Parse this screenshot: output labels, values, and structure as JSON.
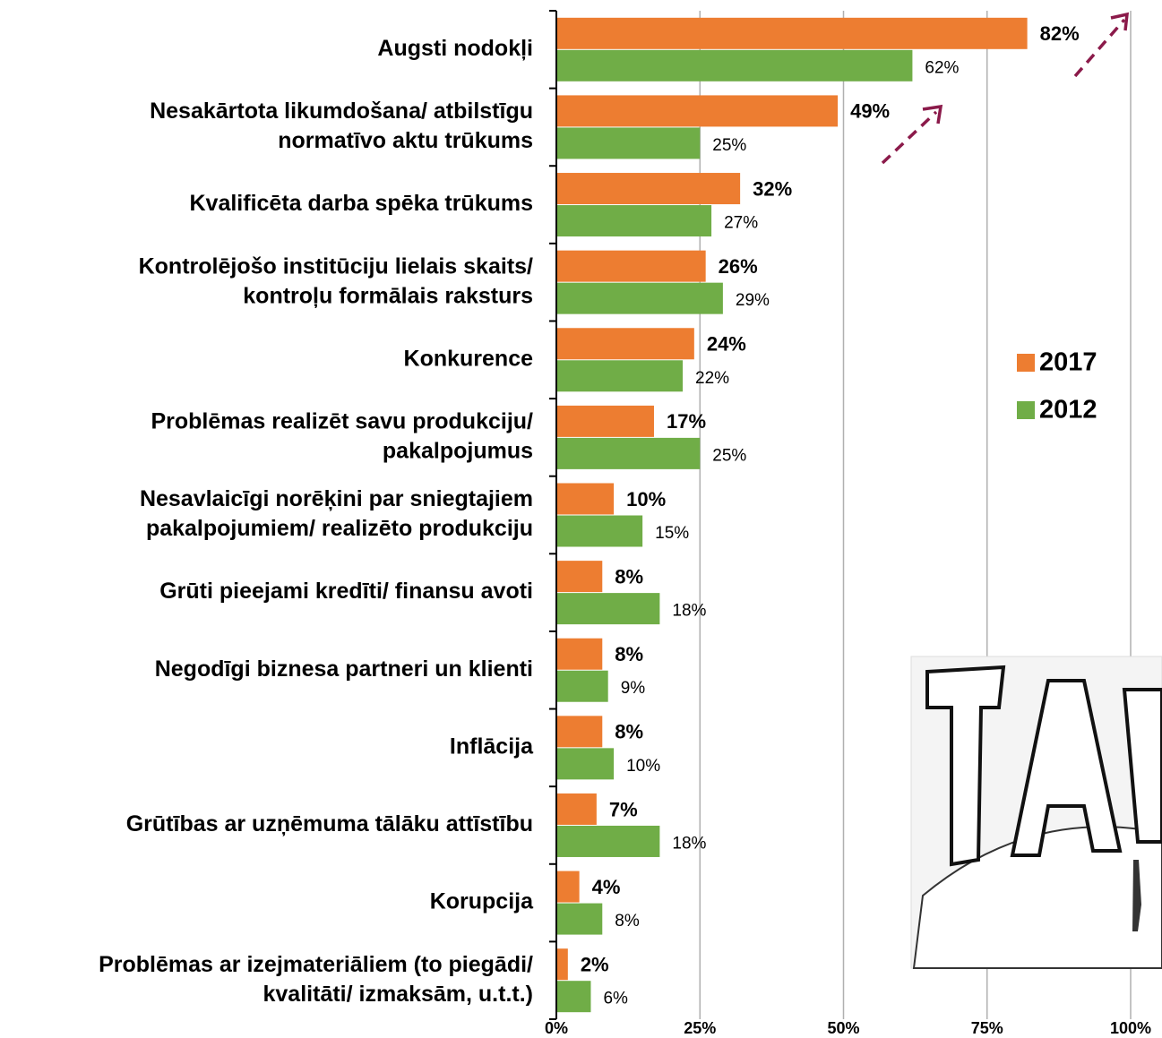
{
  "chart_data": {
    "type": "bar",
    "orientation": "horizontal",
    "categories": [
      [
        "Augsti nodokļi"
      ],
      [
        "Nesakārtota likumdošana/ atbilstīgu",
        "normatīvo aktu trūkums"
      ],
      [
        "Kvalificēta darba spēka trūkums"
      ],
      [
        "Kontrolējošo institūciju lielais skaits/",
        "kontroļu formālais raksturs"
      ],
      [
        "Konkurence"
      ],
      [
        "Problēmas realizēt savu produkciju/",
        "pakalpojumus"
      ],
      [
        "Nesavlaicīgi norēķini par sniegtajiem",
        "pakalpojumiem/ realizēto produkciju"
      ],
      [
        "Grūti pieejami kredīti/ finansu avoti"
      ],
      [
        "Negodīgi biznesa partneri un klienti"
      ],
      [
        "Inflācija"
      ],
      [
        "Grūtības ar uzņēmuma tālāku attīstību"
      ],
      [
        "Korupcija"
      ],
      [
        "Problēmas ar izejmateriāliem (to piegādi/",
        "kvalitāti/ izmaksām, u.t.t.)"
      ]
    ],
    "series": [
      {
        "name": "2017",
        "color": "#ed7d31",
        "values": [
          82,
          49,
          32,
          26,
          24,
          17,
          10,
          8,
          8,
          8,
          7,
          4,
          2
        ],
        "value_labels": [
          "82%",
          "49%",
          "32%",
          "26%",
          "24%",
          "17%",
          "10%",
          "8%",
          "8%",
          "8%",
          "7%",
          "4%",
          "2%"
        ]
      },
      {
        "name": "2012",
        "color": "#70ad47",
        "values": [
          62,
          25,
          27,
          29,
          22,
          25,
          15,
          18,
          9,
          10,
          18,
          8,
          6
        ],
        "value_labels": [
          "62%",
          "25%",
          "27%",
          "29%",
          "22%",
          "25%",
          "15%",
          "18%",
          "9%",
          "10%",
          "18%",
          "8%",
          "6%"
        ]
      }
    ],
    "xlim": [
      0,
      100
    ],
    "xticks": [
      {
        "value": 0,
        "label": "0%"
      },
      {
        "value": 25,
        "label": "25%"
      },
      {
        "value": 50,
        "label": "50%"
      },
      {
        "value": 75,
        "label": "75%"
      },
      {
        "value": 100,
        "label": "100%"
      }
    ],
    "grid": true
  }
}
